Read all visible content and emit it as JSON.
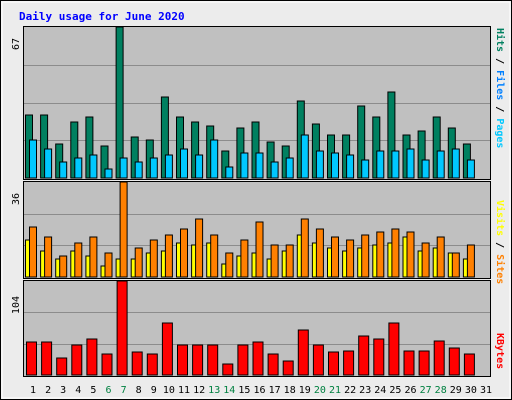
{
  "title": "Daily usage for June 2020",
  "colors": {
    "background": "#ececec",
    "plot": "#c0c0c0",
    "grid": "#8c8c8c",
    "title": "#0000ff",
    "weekday_label": "#000000",
    "weekend_label": "#008040",
    "pages": "#00c8ff",
    "files": "#008060",
    "sites": "#ff8000",
    "visits": "#ffff00",
    "kbytes": "#ff0000"
  },
  "chart_data": [
    {
      "type": "bar",
      "name": "pages-files-hits",
      "ymax_label": "67",
      "ylim": [
        0,
        67
      ],
      "right_label": {
        "pages": "Pages",
        "files": "Files",
        "hits": "Hits",
        "sep1": " / ",
        "sep2": " / "
      },
      "categories": [
        "1",
        "2",
        "3",
        "4",
        "5",
        "6",
        "7",
        "8",
        "9",
        "10",
        "11",
        "12",
        "13",
        "14",
        "15",
        "16",
        "17",
        "18",
        "19",
        "20",
        "21",
        "22",
        "23",
        "24",
        "25",
        "26",
        "27",
        "28",
        "29",
        "30",
        "31"
      ],
      "weekend": [
        "6",
        "7",
        "13",
        "14",
        "20",
        "21",
        "27",
        "28"
      ],
      "series": [
        {
          "name": "Hits",
          "values": [
            28,
            28,
            15,
            25,
            27,
            14,
            67,
            18,
            17,
            36,
            27,
            25,
            23,
            12,
            22,
            25,
            16,
            14,
            34,
            24,
            19,
            19,
            32,
            27,
            38,
            19,
            21,
            27,
            22,
            15,
            0
          ]
        },
        {
          "name": "Files",
          "values": [
            28,
            28,
            15,
            25,
            27,
            14,
            67,
            18,
            17,
            36,
            27,
            25,
            23,
            12,
            22,
            25,
            16,
            14,
            34,
            24,
            19,
            19,
            32,
            27,
            38,
            19,
            21,
            27,
            22,
            15,
            0
          ]
        },
        {
          "name": "Pages",
          "values": [
            17,
            13,
            7,
            9,
            10,
            4,
            9,
            7,
            9,
            10,
            13,
            10,
            17,
            5,
            11,
            11,
            7,
            9,
            19,
            12,
            11,
            10,
            8,
            12,
            12,
            13,
            8,
            12,
            13,
            8,
            0
          ]
        }
      ]
    },
    {
      "type": "bar",
      "name": "sites-visits",
      "ymax_label": "36",
      "ylim": [
        0,
        36
      ],
      "right_label": {
        "sites": "Sites",
        "visits": "Visits",
        "sep": " / "
      },
      "categories": [
        "1",
        "2",
        "3",
        "4",
        "5",
        "6",
        "7",
        "8",
        "9",
        "10",
        "11",
        "12",
        "13",
        "14",
        "15",
        "16",
        "17",
        "18",
        "19",
        "20",
        "21",
        "22",
        "23",
        "24",
        "25",
        "26",
        "27",
        "28",
        "29",
        "30",
        "31"
      ],
      "series": [
        {
          "name": "Sites",
          "values": [
            19,
            15,
            8,
            13,
            15,
            9,
            36,
            11,
            14,
            16,
            18,
            22,
            16,
            9,
            14,
            21,
            12,
            12,
            22,
            18,
            15,
            14,
            16,
            17,
            18,
            17,
            13,
            15,
            9,
            12,
            0
          ]
        },
        {
          "name": "Visits",
          "values": [
            14,
            10,
            7,
            10,
            8,
            4,
            7,
            7,
            9,
            10,
            13,
            12,
            13,
            5,
            8,
            9,
            7,
            10,
            16,
            13,
            11,
            10,
            11,
            12,
            13,
            15,
            10,
            11,
            9,
            7,
            0
          ]
        }
      ]
    },
    {
      "type": "bar",
      "name": "kbytes",
      "ymax_label": "104",
      "ylim": [
        0,
        104
      ],
      "right_label": "KBytes",
      "categories": [
        "1",
        "2",
        "3",
        "4",
        "5",
        "6",
        "7",
        "8",
        "9",
        "10",
        "11",
        "12",
        "13",
        "14",
        "15",
        "16",
        "17",
        "18",
        "19",
        "20",
        "21",
        "22",
        "23",
        "24",
        "25",
        "26",
        "27",
        "28",
        "29",
        "30",
        "31"
      ],
      "series": [
        {
          "name": "KBytes",
          "values": [
            36,
            36,
            19,
            33,
            40,
            23,
            104,
            25,
            23,
            58,
            33,
            33,
            33,
            12,
            33,
            36,
            23,
            16,
            50,
            33,
            25,
            26,
            43,
            40,
            58,
            26,
            26,
            38,
            30,
            23,
            0
          ]
        }
      ]
    }
  ]
}
